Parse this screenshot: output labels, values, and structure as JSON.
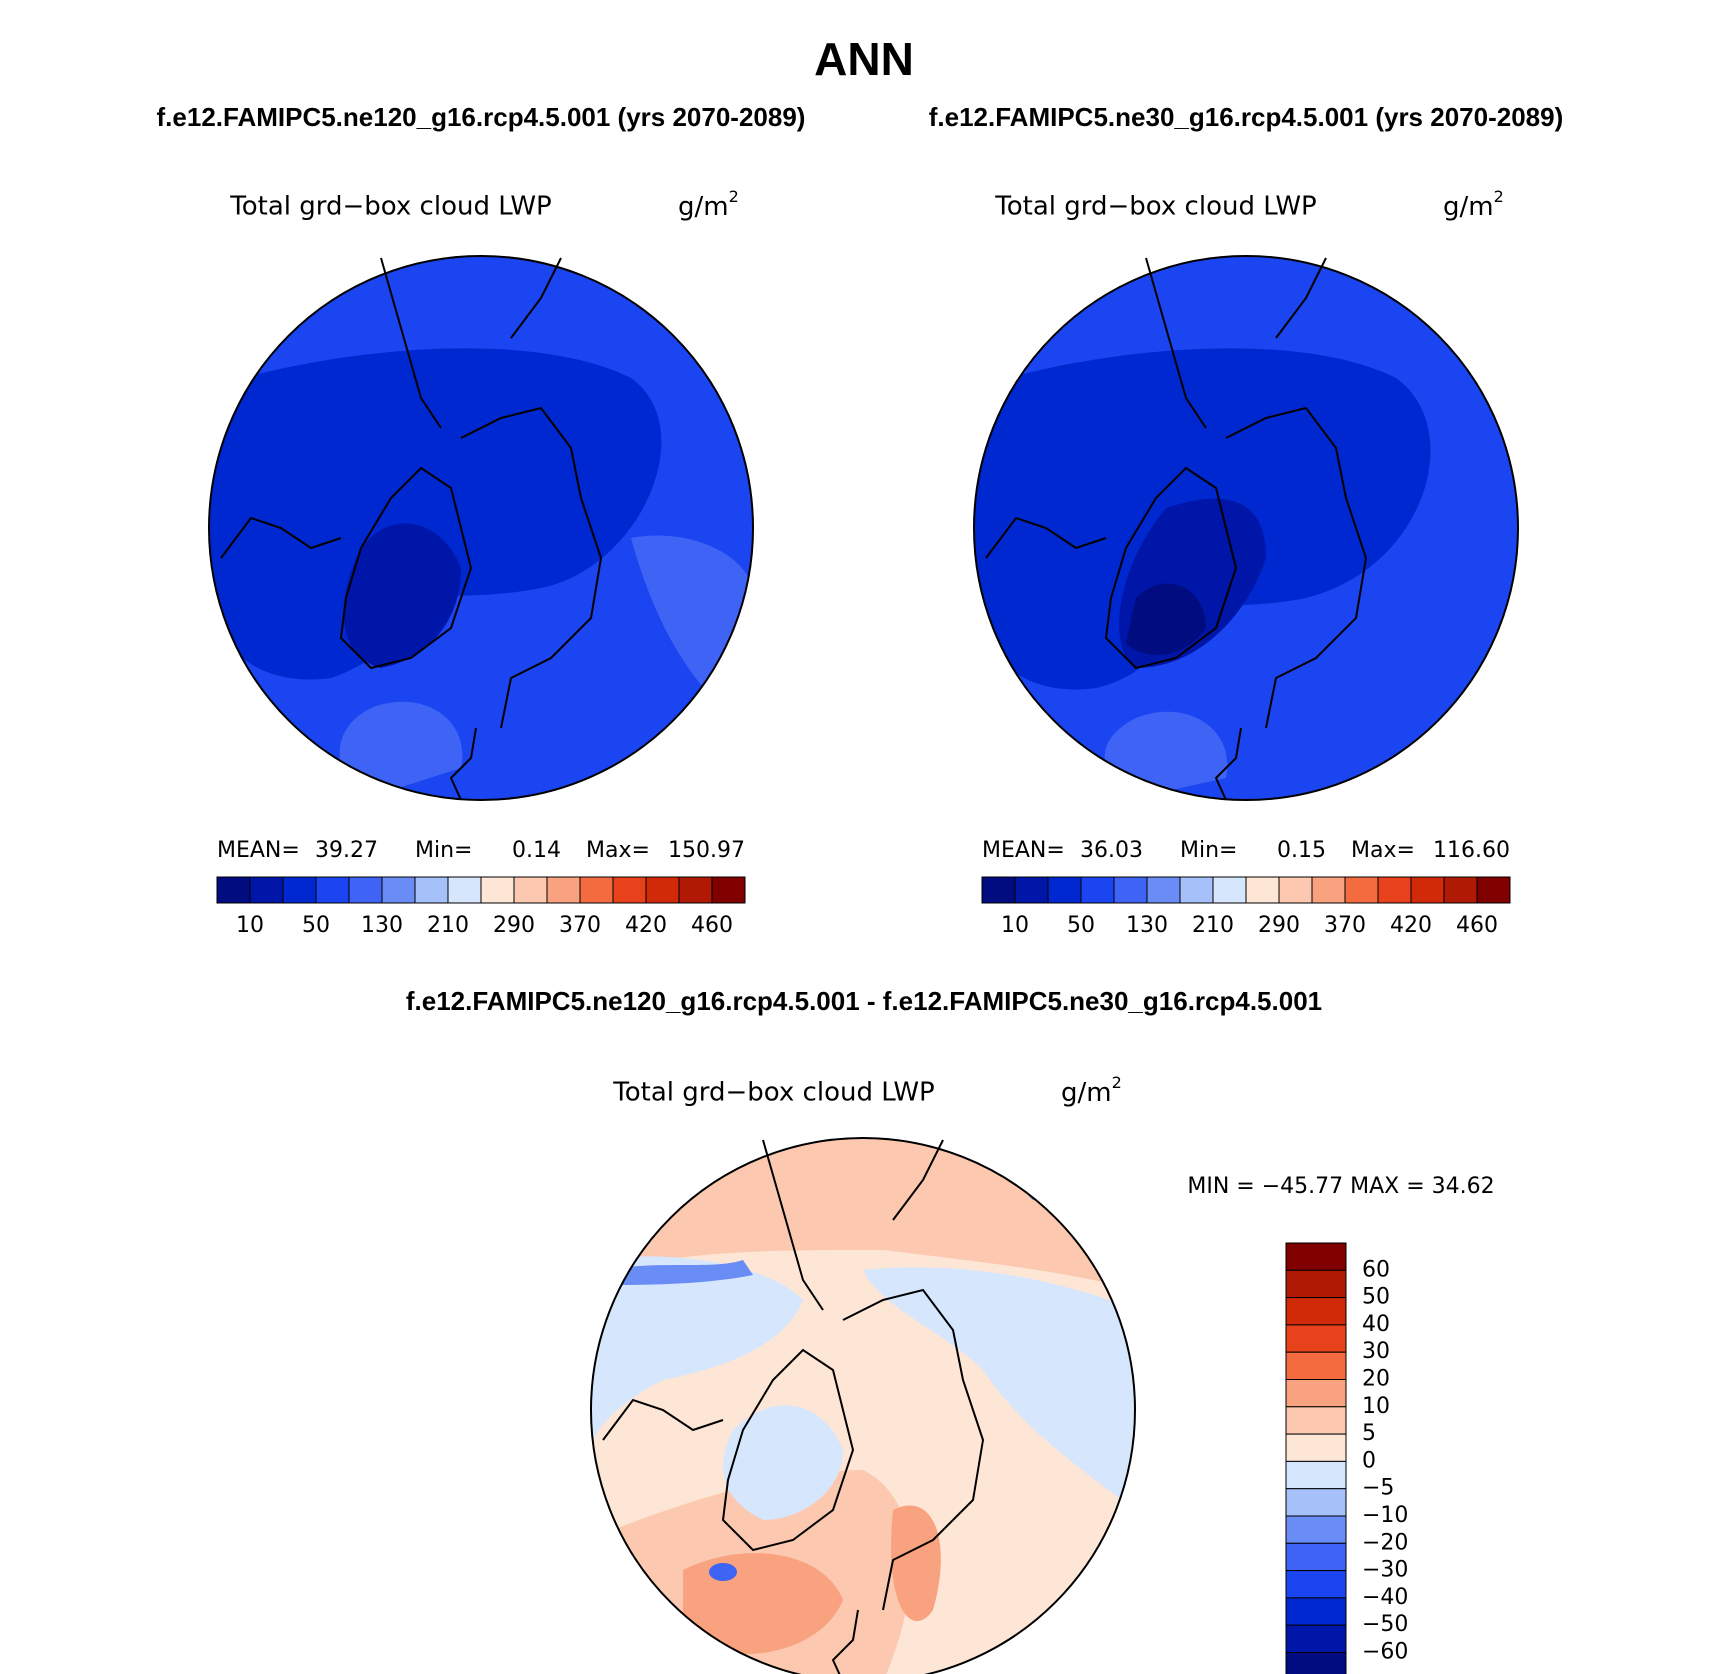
{
  "title": "ANN",
  "panels": [
    {
      "subtitle": "f.e12.FAMIPC5.ne120_g16.rcp4.5.001 (yrs 2070-2089)",
      "field": "Total grd−box cloud LWP",
      "units": "g/m",
      "units_power": "2",
      "stats": [
        "MEAN=",
        "39.27",
        "Min=",
        "0.14",
        "Max=",
        "150.97"
      ]
    },
    {
      "subtitle": "f.e12.FAMIPC5.ne30_g16.rcp4.5.001 (yrs 2070-2089)",
      "field": "Total grd−box cloud LWP",
      "units": "g/m",
      "units_power": "2",
      "stats": [
        "MEAN=",
        "36.03",
        "Min=",
        "0.15",
        "Max=",
        "116.60"
      ]
    }
  ],
  "colorbar": {
    "colors": [
      "#000c80",
      "#0016a8",
      "#0028d0",
      "#1a45f0",
      "#3e63f5",
      "#6a8cf5",
      "#a6c0fa",
      "#d6e6fd",
      "#fde6d6",
      "#fcc9b0",
      "#f9a27f",
      "#f46b3f",
      "#e8421c",
      "#d02a08",
      "#b01a04",
      "#800000"
    ],
    "labels": [
      "10",
      "50",
      "130",
      "210",
      "290",
      "370",
      "420",
      "460"
    ]
  },
  "difference": {
    "subtitle": "f.e12.FAMIPC5.ne120_g16.rcp4.5.001 - f.e12.FAMIPC5.ne30_g16.rcp4.5.001",
    "field": "Total grd−box cloud LWP",
    "units": "g/m",
    "units_power": "2",
    "minmax": "MIN = −45.77 MAX =  34.62",
    "colorbar": {
      "colors": [
        "#800000",
        "#b01a04",
        "#d02a08",
        "#e8421c",
        "#f46b3f",
        "#f9a27f",
        "#fcc9b0",
        "#fde6d6",
        "#d6e6fd",
        "#a6c0fa",
        "#6a8cf5",
        "#3e63f5",
        "#1a45f0",
        "#0028d0",
        "#0016a8",
        "#000c80"
      ],
      "labels": [
        "60",
        "50",
        "40",
        "30",
        "20",
        "10",
        "5",
        "0",
        "−5",
        "−10",
        "−20",
        "−30",
        "−40",
        "−50",
        "−60"
      ]
    }
  }
}
